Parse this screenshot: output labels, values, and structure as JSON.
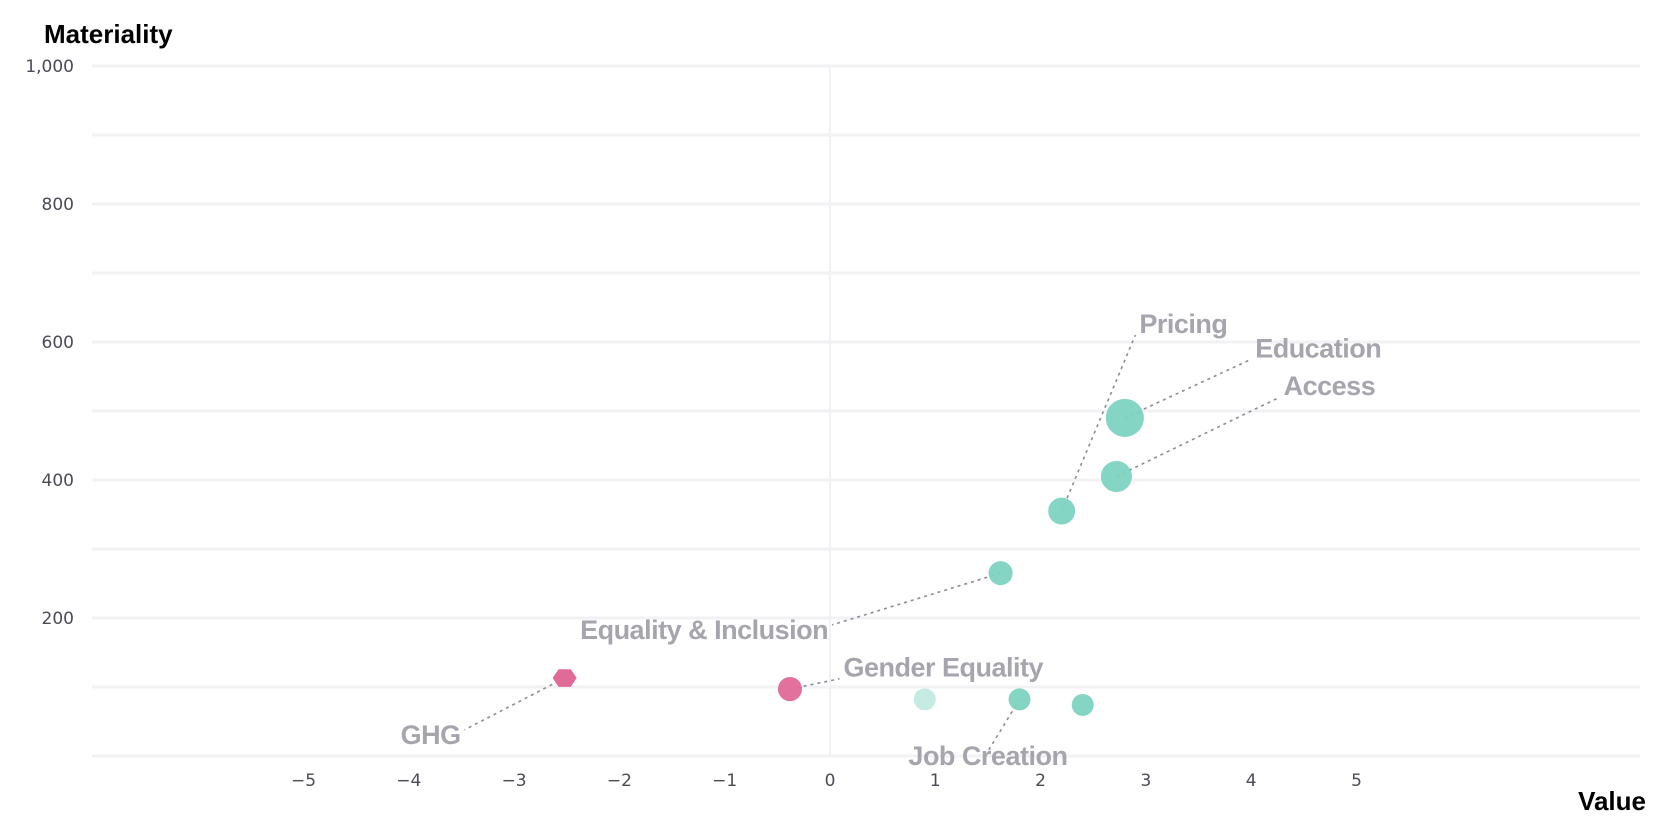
{
  "chart_data": {
    "type": "scatter",
    "title": "",
    "xlabel": "Value",
    "ylabel": "Materiality",
    "xlim": [
      -7,
      7.8
    ],
    "ylim": [
      0,
      1000
    ],
    "xticks": [
      "−5",
      "−4",
      "−3",
      "−2",
      "−1",
      "0",
      "1",
      "2",
      "3",
      "4",
      "5"
    ],
    "xtick_values": [
      -5,
      -4,
      -3,
      -2,
      -1,
      0,
      1,
      2,
      3,
      4,
      5
    ],
    "yticks": [
      "200",
      "400",
      "600",
      "800",
      "1,000"
    ],
    "ytick_values": [
      200,
      400,
      600,
      800,
      1000
    ],
    "grid": true,
    "colors": {
      "positive": "#7dd3c1",
      "negative": "#e06a98",
      "faded": "#c5ebe3",
      "label": "#a6a5ad",
      "leader": "#8c8c94"
    },
    "points": [
      {
        "label": "Education",
        "x": 2.8,
        "y": 490,
        "size": 3,
        "color": "positive",
        "shape": "circle",
        "label_dx": 1.2,
        "label_dy": 85
      },
      {
        "label": "Access",
        "x": 2.72,
        "y": 405,
        "size": 2,
        "color": "positive",
        "shape": "circle",
        "label_dx": 1.55,
        "label_dy": 115
      },
      {
        "label": "Pricing",
        "x": 2.2,
        "y": 355,
        "size": 1.5,
        "color": "positive",
        "shape": "circle",
        "label_dx": 0.7,
        "label_dy": 255
      },
      {
        "label": "Equality & Inclusion",
        "x": 1.62,
        "y": 265,
        "size": 1.2,
        "color": "positive",
        "shape": "circle",
        "label_dx": -1.6,
        "label_dy": -75
      },
      {
        "label": "Gender Equality",
        "x": -0.38,
        "y": 97,
        "size": 1.2,
        "color": "negative",
        "shape": "circle",
        "label_dx": 0.47,
        "label_dy": 15
      },
      {
        "label": "GHG",
        "x": -2.52,
        "y": 113,
        "size": 1.2,
        "color": "negative",
        "shape": "hexagon",
        "label_dx": -0.95,
        "label_dy": -75
      },
      {
        "label": "Job Creation",
        "x": 1.8,
        "y": 82,
        "size": 1,
        "color": "positive",
        "shape": "circle",
        "label_dx": -0.3,
        "label_dy": -75
      },
      {
        "label": "",
        "x": 0.9,
        "y": 82,
        "size": 1,
        "color": "faded",
        "shape": "circle"
      },
      {
        "label": "",
        "x": 2.4,
        "y": 74,
        "size": 1,
        "color": "positive",
        "shape": "circle"
      }
    ]
  }
}
